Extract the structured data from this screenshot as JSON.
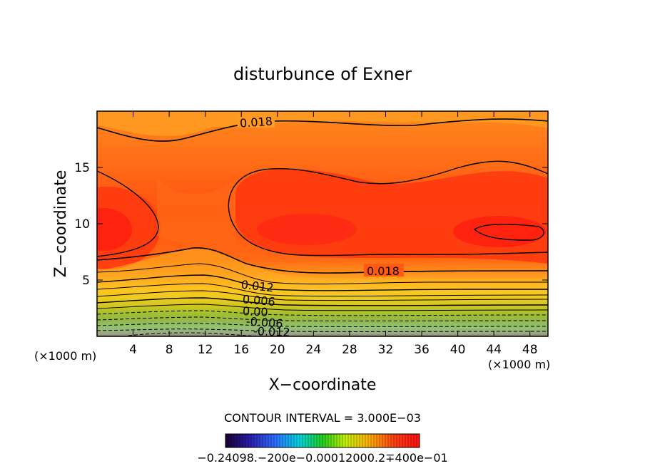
{
  "chart_data": {
    "type": "contour",
    "title": "disturbunce of Exner",
    "xlabel": "X−coordinate",
    "ylabel": "Z−coordinate",
    "x_unit_label": "(×1000 m)",
    "xlim": [
      0,
      50
    ],
    "ylim": [
      0,
      20
    ],
    "x_ticks": [
      4,
      8,
      12,
      16,
      20,
      24,
      28,
      32,
      36,
      40,
      44,
      48
    ],
    "y_ticks": [
      5,
      10,
      15
    ],
    "contour_interval_label": "CONTOUR INTERVAL = 3.000E−03",
    "contour_labels": [
      "0.018",
      "0.018",
      "0.012",
      "0.006",
      "0.00",
      "-0.006",
      "-0.012"
    ],
    "colorbar_labels": "−0.24098.−200e−0.00012000.2∓400e−01",
    "value_range": [
      -0.024,
      0.024
    ],
    "features": [
      {
        "description": "maximum near x=44-48, z=10",
        "value": 0.021
      },
      {
        "description": "negative minimum near surface x=8-14",
        "value": -0.015
      }
    ]
  }
}
